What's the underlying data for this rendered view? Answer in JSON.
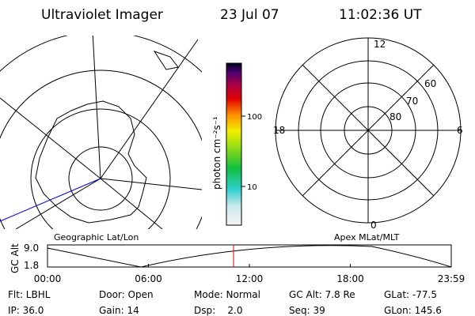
{
  "header": {
    "title": "Ultraviolet Imager",
    "date": "23 Jul 07",
    "time": "11:02:36 UT"
  },
  "left_map": {
    "caption": "Geographic Lat/Lon"
  },
  "colorbar": {
    "label": "photon cm⁻²s⁻¹",
    "ticks": [
      "100",
      "10"
    ]
  },
  "right_map": {
    "caption": "Apex MLat/MLT",
    "mlt": [
      "12",
      "18",
      "6",
      "0"
    ],
    "mlat": [
      "60",
      "70",
      "80"
    ]
  },
  "timeline": {
    "ylabel": "GC Alt",
    "yticks": [
      "9.0",
      "1.8"
    ],
    "xticks": [
      "00:00",
      "06:00",
      "12:00",
      "18:00",
      "23:59"
    ]
  },
  "footer": {
    "rows": [
      [
        "Flt: LBHL",
        "Door: Open",
        "Mode: Normal",
        "GC Alt: 7.8 Re",
        "GLat: -77.5"
      ],
      [
        "IP: 36.0",
        "Gain: 14",
        "Dsp:    2.0",
        "Seq: 39",
        "GLon: 145.6"
      ]
    ]
  }
}
